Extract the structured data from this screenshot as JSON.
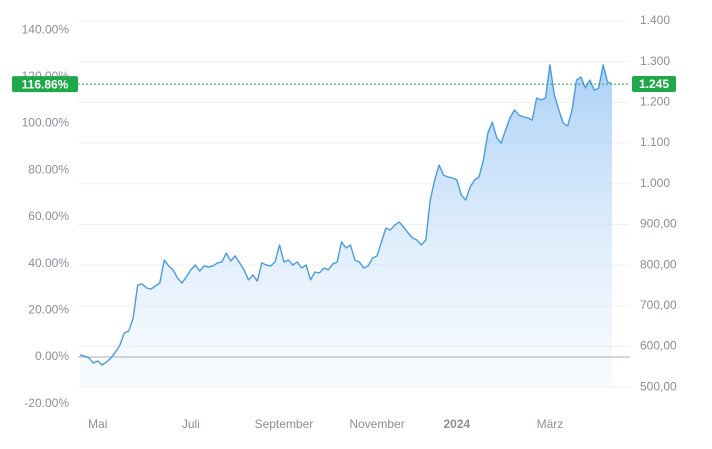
{
  "chart_data": {
    "type": "line",
    "categories": [
      null,
      null,
      null,
      null,
      "Mai",
      null,
      null,
      null,
      null,
      null,
      null,
      null,
      null,
      null,
      null,
      null,
      null,
      null,
      null,
      null,
      null,
      null,
      null,
      null,
      null,
      "Juli",
      null,
      null,
      null,
      null,
      null,
      null,
      null,
      null,
      null,
      null,
      null,
      null,
      null,
      null,
      null,
      null,
      null,
      null,
      null,
      null,
      "September",
      null,
      null,
      null,
      null,
      null,
      null,
      null,
      null,
      null,
      null,
      null,
      null,
      null,
      null,
      null,
      null,
      null,
      null,
      null,
      null,
      "November",
      null,
      null,
      null,
      null,
      null,
      null,
      null,
      null,
      null,
      null,
      null,
      null,
      null,
      null,
      null,
      null,
      null,
      "2024",
      null,
      null,
      null,
      null,
      null,
      null,
      null,
      null,
      null,
      null,
      null,
      null,
      null,
      null,
      null,
      null,
      null,
      null,
      null,
      null,
      "März",
      null,
      null,
      null,
      null,
      null,
      null,
      null,
      null,
      null,
      null,
      null,
      null,
      null,
      null
    ],
    "series": [
      {
        "color": "#4a9de0",
        "values": [
          0.9,
          0.4,
          -0.4,
          -2.6,
          -1.7,
          -3.4,
          -2.1,
          -0.4,
          2.1,
          5.1,
          10.3,
          11.1,
          16.7,
          30.8,
          31.3,
          29.6,
          29.1,
          30.4,
          31.7,
          41.5,
          39.0,
          37.3,
          33.8,
          31.7,
          34.3,
          37.3,
          39.4,
          36.8,
          39.0,
          38.5,
          39.0,
          40.3,
          40.7,
          44.5,
          41.1,
          43.3,
          40.3,
          37.3,
          33.0,
          35.1,
          32.5,
          40.3,
          39.4,
          39.0,
          40.7,
          48.0,
          40.7,
          41.5,
          39.4,
          40.7,
          38.1,
          39.4,
          33.0,
          36.4,
          36.0,
          38.1,
          37.3,
          39.8,
          40.7,
          49.3,
          46.7,
          48.0,
          41.5,
          40.7,
          38.1,
          39.0,
          42.4,
          43.3,
          49.3,
          55.2,
          54.4,
          56.5,
          57.8,
          55.7,
          53.1,
          51.0,
          50.1,
          48.0,
          50.1,
          67.2,
          75.8,
          82.2,
          77.9,
          77.1,
          76.7,
          75.8,
          69.4,
          67.2,
          72.8,
          75.8,
          77.1,
          84.4,
          95.9,
          100.6,
          93.8,
          91.6,
          97.2,
          102.4,
          105.8,
          103.6,
          102.8,
          102.4,
          101.5,
          110.9,
          110.1,
          110.9,
          125.1,
          112.2,
          105.8,
          100.2,
          98.9,
          105.8,
          118.6,
          119.9,
          115.2,
          118.6,
          114.3,
          115.2,
          125.1,
          117.8,
          116.86
        ]
      }
    ],
    "ylim": [
      -22.7,
      148.6
    ],
    "yticks": [
      {
        "value": 140,
        "label": "140.00%"
      },
      {
        "value": 120,
        "label": "120.00%"
      },
      {
        "value": 100,
        "label": "100.00%"
      },
      {
        "value": 80,
        "label": "80.00%"
      },
      {
        "value": 60,
        "label": "60.00%"
      },
      {
        "value": 40,
        "label": "40.00%"
      },
      {
        "value": 20,
        "label": "20.00%"
      },
      {
        "value": 0,
        "label": "0.00%"
      },
      {
        "value": -20,
        "label": "-20.00%"
      }
    ],
    "y2lim": [
      444,
      1427
    ],
    "y2ticks": [
      {
        "value": 1400,
        "label": "1.400"
      },
      {
        "value": 1300,
        "label": "1.300"
      },
      {
        "value": 1200,
        "label": "1.200"
      },
      {
        "value": 1100,
        "label": "1.100"
      },
      {
        "value": 1000,
        "label": "1.000"
      },
      {
        "value": 900,
        "label": "900,00"
      },
      {
        "value": 800,
        "label": "800,00"
      },
      {
        "value": 700,
        "label": "700,00"
      },
      {
        "value": 600,
        "label": "600,00"
      },
      {
        "value": 500,
        "label": "500,00"
      }
    ],
    "grid": true,
    "current": {
      "percent": 116.86,
      "percent_label": "116.86%",
      "price": 1245,
      "price_label": "1.245",
      "color": "#1fa84a"
    }
  }
}
